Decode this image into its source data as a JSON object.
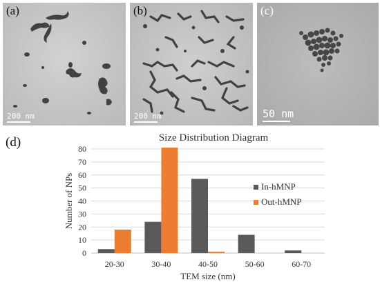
{
  "panels": [
    {
      "letter": "(a)",
      "scale": "200 nm"
    },
    {
      "letter": "(b)",
      "scale": "200 nm"
    },
    {
      "letter": "(c)",
      "scale": "50 nm"
    }
  ],
  "chart_label": "(d)",
  "colors": {
    "in": "#595959",
    "out": "#ed7d31",
    "grid": "#d9d9d9",
    "axis": "#bfbfbf"
  },
  "chart_data": {
    "type": "bar",
    "title": "Size Distribution Diagram",
    "xlabel": "TEM size (nm)",
    "ylabel": "Number of NPs",
    "categories": [
      "20-30",
      "30-40",
      "40-50",
      "50-60",
      "60-70"
    ],
    "ylim": [
      0,
      80
    ],
    "yticks": [
      0,
      10,
      20,
      30,
      40,
      50,
      60,
      70,
      80
    ],
    "grid": true,
    "legend": "right",
    "series": [
      {
        "name": "In-hMNP",
        "values": [
          3,
          24,
          57,
          14,
          2
        ]
      },
      {
        "name": "Out-hMNP",
        "values": [
          18,
          81,
          1,
          0,
          0
        ]
      }
    ]
  }
}
